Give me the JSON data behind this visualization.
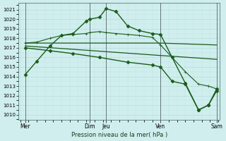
{
  "title": "Pression niveau de la mer( hPa )",
  "bg_color": "#d0eeee",
  "grid_major_color": "#b0d8d8",
  "grid_minor_color": "#c0e4e4",
  "line_color": "#1a5c1a",
  "ylim": [
    1009.5,
    1021.7
  ],
  "yticks": [
    1010,
    1011,
    1012,
    1013,
    1014,
    1015,
    1016,
    1017,
    1018,
    1019,
    1020,
    1021
  ],
  "xlim": [
    -0.1,
    12.1
  ],
  "xtick_positions": [
    0.3,
    4.2,
    5.2,
    8.5,
    11.9
  ],
  "xtick_labels": [
    "Mer",
    "Dim",
    "Jeu",
    "Ven",
    "Sam"
  ],
  "vline_positions": [
    0.3,
    4.2,
    5.2,
    8.5,
    11.9
  ],
  "lines": [
    {
      "x": [
        0.3,
        1.0,
        1.8,
        2.5,
        3.2,
        4.0,
        4.2,
        4.8,
        5.2,
        5.8,
        6.5,
        7.2,
        8.0,
        8.5,
        9.2,
        10.0,
        10.8,
        11.4,
        11.9
      ],
      "y": [
        1014.2,
        1015.6,
        1017.2,
        1018.3,
        1018.5,
        1019.8,
        1020.0,
        1020.2,
        1021.1,
        1020.8,
        1019.3,
        1018.8,
        1018.5,
        1018.4,
        1016.0,
        1013.3,
        1010.5,
        1011.0,
        1012.7
      ],
      "marker": "D",
      "markersize": 2.5,
      "linewidth": 1.0
    },
    {
      "x": [
        0.3,
        1.0,
        1.8,
        2.5,
        3.2,
        4.0,
        4.2,
        4.8,
        5.2,
        5.8,
        6.5,
        7.2,
        8.0,
        8.5,
        9.2,
        10.0,
        10.8,
        11.4,
        11.9
      ],
      "y": [
        1017.5,
        1017.6,
        1018.0,
        1018.3,
        1018.4,
        1018.5,
        1018.6,
        1018.7,
        1018.6,
        1018.5,
        1018.4,
        1018.3,
        1018.1,
        1017.3,
        1016.0,
        1014.5,
        1013.2,
        1013.0,
        1012.7
      ],
      "marker": "+",
      "markersize": 3.0,
      "linewidth": 0.8
    },
    {
      "x": [
        0.3,
        8.5,
        11.9
      ],
      "y": [
        1017.5,
        1017.5,
        1017.3
      ],
      "marker": null,
      "markersize": 0,
      "linewidth": 0.9
    },
    {
      "x": [
        0.3,
        8.5,
        11.9
      ],
      "y": [
        1017.2,
        1016.2,
        1015.8
      ],
      "marker": null,
      "markersize": 0,
      "linewidth": 0.9
    },
    {
      "x": [
        0.3,
        1.8,
        3.2,
        4.8,
        6.5,
        8.0,
        8.5,
        9.2,
        10.0,
        10.8,
        11.4,
        11.9
      ],
      "y": [
        1017.0,
        1016.7,
        1016.4,
        1016.0,
        1015.5,
        1015.2,
        1015.0,
        1013.5,
        1013.2,
        1010.5,
        1011.0,
        1012.5
      ],
      "marker": "D",
      "markersize": 2.5,
      "linewidth": 1.0
    }
  ]
}
